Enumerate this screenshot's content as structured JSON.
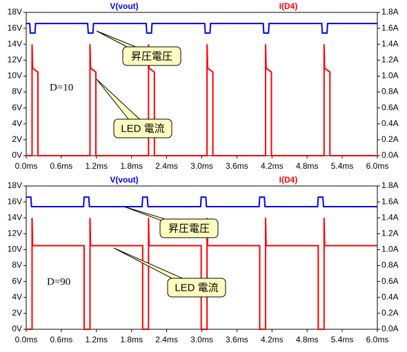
{
  "chart_data": [
    {
      "type": "line",
      "annotations": [
        "昇圧電圧",
        "LED 電流",
        "D=10"
      ],
      "ylim": [
        0,
        18
      ],
      "y2lim": [
        0,
        1.8
      ],
      "xlim": [
        0,
        6
      ],
      "yticks": [
        {
          "value": 0,
          "label": "0V"
        },
        {
          "value": 2,
          "label": "2V"
        },
        {
          "value": 4,
          "label": "4V"
        },
        {
          "value": 6,
          "label": "6V"
        },
        {
          "value": 8,
          "label": "8V"
        },
        {
          "value": 10,
          "label": "10V"
        },
        {
          "value": 12,
          "label": "12V"
        },
        {
          "value": 14,
          "label": "14V"
        },
        {
          "value": 16,
          "label": "16V"
        },
        {
          "value": 18,
          "label": "18V"
        }
      ],
      "y2ticks": [
        {
          "value": 0,
          "label": "0.0A"
        },
        {
          "value": 0.2,
          "label": "0.2A"
        },
        {
          "value": 0.4,
          "label": "0.4A"
        },
        {
          "value": 0.6,
          "label": "0.6A"
        },
        {
          "value": 0.8,
          "label": "0.8A"
        },
        {
          "value": 1.0,
          "label": "1.0A"
        },
        {
          "value": 1.2,
          "label": "1.2A"
        },
        {
          "value": 1.4,
          "label": "1.4A"
        },
        {
          "value": 1.6,
          "label": "1.6A"
        },
        {
          "value": 1.8,
          "label": "1.8A"
        }
      ],
      "xticks": [
        {
          "value": 0,
          "label": "0.0ms"
        },
        {
          "value": 0.6,
          "label": "0.6ms"
        },
        {
          "value": 1.2,
          "label": "1.2ms"
        },
        {
          "value": 1.8,
          "label": "1.8ms"
        },
        {
          "value": 2.4,
          "label": "2.4ms"
        },
        {
          "value": 3.0,
          "label": "3.0ms"
        },
        {
          "value": 3.6,
          "label": "3.6ms"
        },
        {
          "value": 4.2,
          "label": "4.2ms"
        },
        {
          "value": 4.8,
          "label": "4.8ms"
        },
        {
          "value": 5.4,
          "label": "5.4ms"
        },
        {
          "value": 6.0,
          "label": "6.0ms"
        }
      ],
      "series": [
        {
          "name": "V(vout)",
          "color": "#0000ff",
          "x": [
            0,
            0.06,
            0.07,
            0.15,
            0.16,
            1.05,
            1.06,
            1.14,
            1.15,
            2.05,
            2.06,
            2.14,
            2.15,
            3.05,
            3.06,
            3.14,
            3.15,
            4.05,
            4.06,
            4.14,
            4.15,
            5.05,
            5.06,
            5.14,
            5.15,
            6
          ],
          "values": [
            16.6,
            16.6,
            15.4,
            15.4,
            16.6,
            16.6,
            15.4,
            15.4,
            16.6,
            16.6,
            15.4,
            15.4,
            16.6,
            16.6,
            15.4,
            15.4,
            16.6,
            16.6,
            15.4,
            15.4,
            16.6,
            16.6,
            15.4,
            15.4,
            16.6,
            16.6
          ]
        },
        {
          "name": "I(D4)",
          "color": "#ff0000",
          "axis": "y2",
          "x": [
            0,
            0.1,
            0.1,
            0.11,
            0.2,
            0.2,
            1.09,
            1.09,
            1.1,
            1.19,
            1.19,
            2.09,
            2.09,
            2.1,
            2.19,
            2.19,
            3.09,
            3.09,
            3.1,
            3.19,
            3.19,
            4.09,
            4.09,
            4.1,
            4.19,
            4.19,
            5.09,
            5.09,
            5.1,
            5.19,
            5.19,
            6
          ],
          "values": [
            0,
            0,
            1.4,
            1.1,
            1.05,
            0,
            0,
            1.4,
            1.1,
            1.05,
            0,
            0,
            1.4,
            1.1,
            1.05,
            0,
            0,
            1.4,
            1.1,
            1.05,
            0,
            0,
            1.4,
            1.1,
            1.05,
            0,
            0,
            1.4,
            1.1,
            1.05,
            0,
            0
          ]
        }
      ]
    },
    {
      "type": "line",
      "annotations": [
        "昇圧電圧",
        "LED 電流",
        "D=90"
      ],
      "ylim": [
        0,
        18
      ],
      "y2lim": [
        0,
        1.8
      ],
      "xlim": [
        0,
        6
      ],
      "yticks": [
        {
          "value": 0,
          "label": "0V"
        },
        {
          "value": 2,
          "label": "2V"
        },
        {
          "value": 4,
          "label": "4V"
        },
        {
          "value": 6,
          "label": "6V"
        },
        {
          "value": 8,
          "label": "8V"
        },
        {
          "value": 10,
          "label": "10V"
        },
        {
          "value": 12,
          "label": "12V"
        },
        {
          "value": 14,
          "label": "14V"
        },
        {
          "value": 16,
          "label": "16V"
        },
        {
          "value": 18,
          "label": "18V"
        }
      ],
      "y2ticks": [
        {
          "value": 0,
          "label": "0.0A"
        },
        {
          "value": 0.2,
          "label": "0.2A"
        },
        {
          "value": 0.4,
          "label": "0.4A"
        },
        {
          "value": 0.6,
          "label": "0.6A"
        },
        {
          "value": 0.8,
          "label": "0.8A"
        },
        {
          "value": 1.0,
          "label": "1.0A"
        },
        {
          "value": 1.2,
          "label": "1.2A"
        },
        {
          "value": 1.4,
          "label": "1.4A"
        },
        {
          "value": 1.6,
          "label": "1.6A"
        },
        {
          "value": 1.8,
          "label": "1.8A"
        }
      ],
      "xticks": [
        {
          "value": 0,
          "label": "0.0ms"
        },
        {
          "value": 0.6,
          "label": "0.6ms"
        },
        {
          "value": 1.2,
          "label": "1.2ms"
        },
        {
          "value": 1.8,
          "label": "1.8ms"
        },
        {
          "value": 2.4,
          "label": "2.4ms"
        },
        {
          "value": 3.0,
          "label": "3.0ms"
        },
        {
          "value": 3.6,
          "label": "3.6ms"
        },
        {
          "value": 4.2,
          "label": "4.2ms"
        },
        {
          "value": 4.8,
          "label": "4.8ms"
        },
        {
          "value": 5.4,
          "label": "5.4ms"
        },
        {
          "value": 6.0,
          "label": "6.0ms"
        }
      ],
      "series": [
        {
          "name": "V(vout)",
          "color": "#0000ff",
          "x": [
            0,
            0.08,
            0.09,
            0.98,
            0.99,
            1.07,
            1.08,
            1.98,
            1.99,
            2.07,
            2.08,
            2.98,
            2.99,
            3.07,
            3.08,
            3.98,
            3.99,
            4.07,
            4.08,
            4.98,
            4.99,
            5.07,
            5.08,
            6
          ],
          "values": [
            16.6,
            16.6,
            15.4,
            15.4,
            16.6,
            16.6,
            15.4,
            15.4,
            16.6,
            16.6,
            15.4,
            15.4,
            16.6,
            16.6,
            15.4,
            15.4,
            16.6,
            16.6,
            15.4,
            15.4,
            16.6,
            16.6,
            15.4,
            15.4
          ]
        },
        {
          "name": "I(D4)",
          "color": "#ff0000",
          "axis": "y2",
          "x": [
            0,
            0.1,
            0.1,
            0.11,
            0.99,
            0.99,
            1.09,
            1.09,
            1.1,
            1.99,
            1.99,
            2.09,
            2.09,
            2.1,
            2.99,
            2.99,
            3.09,
            3.09,
            3.1,
            3.99,
            3.99,
            4.09,
            4.09,
            4.1,
            4.99,
            4.99,
            5.09,
            5.09,
            5.1,
            6
          ],
          "values": [
            0,
            0,
            1.4,
            1.05,
            1.05,
            0,
            0,
            1.4,
            1.05,
            1.05,
            0,
            0,
            1.4,
            1.05,
            1.05,
            0,
            0,
            1.4,
            1.05,
            1.05,
            0,
            0,
            1.4,
            1.05,
            1.05,
            0,
            0,
            1.4,
            1.05,
            1.05
          ]
        }
      ]
    }
  ]
}
